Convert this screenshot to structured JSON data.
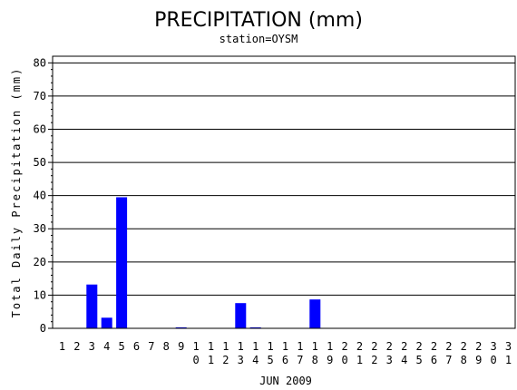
{
  "chart_data": {
    "type": "bar",
    "title": "PRECIPITATION (mm)",
    "subtitle": "station=OYSM",
    "xlabel": "JUN 2009",
    "ylabel": "Total Daily Precipitation (mm)",
    "ylim": [
      0,
      82
    ],
    "yticks": [
      0,
      10,
      20,
      30,
      40,
      50,
      60,
      70,
      80
    ],
    "grid": true,
    "bar_color": "#0000ff",
    "categories": [
      "1",
      "2",
      "3",
      "4",
      "5",
      "6",
      "7",
      "8",
      "9",
      "10",
      "11",
      "12",
      "13",
      "14",
      "15",
      "16",
      "17",
      "18",
      "19",
      "20",
      "21",
      "22",
      "23",
      "24",
      "25",
      "26",
      "27",
      "28",
      "29",
      "30",
      "31"
    ],
    "values": [
      0,
      0,
      13.2,
      3.2,
      39.5,
      0,
      0,
      0,
      0.3,
      0,
      0,
      0,
      7.6,
      0.3,
      0,
      0,
      0,
      8.7,
      0,
      0,
      0,
      0,
      0,
      0,
      0,
      0,
      0,
      0,
      0,
      0,
      0
    ]
  }
}
